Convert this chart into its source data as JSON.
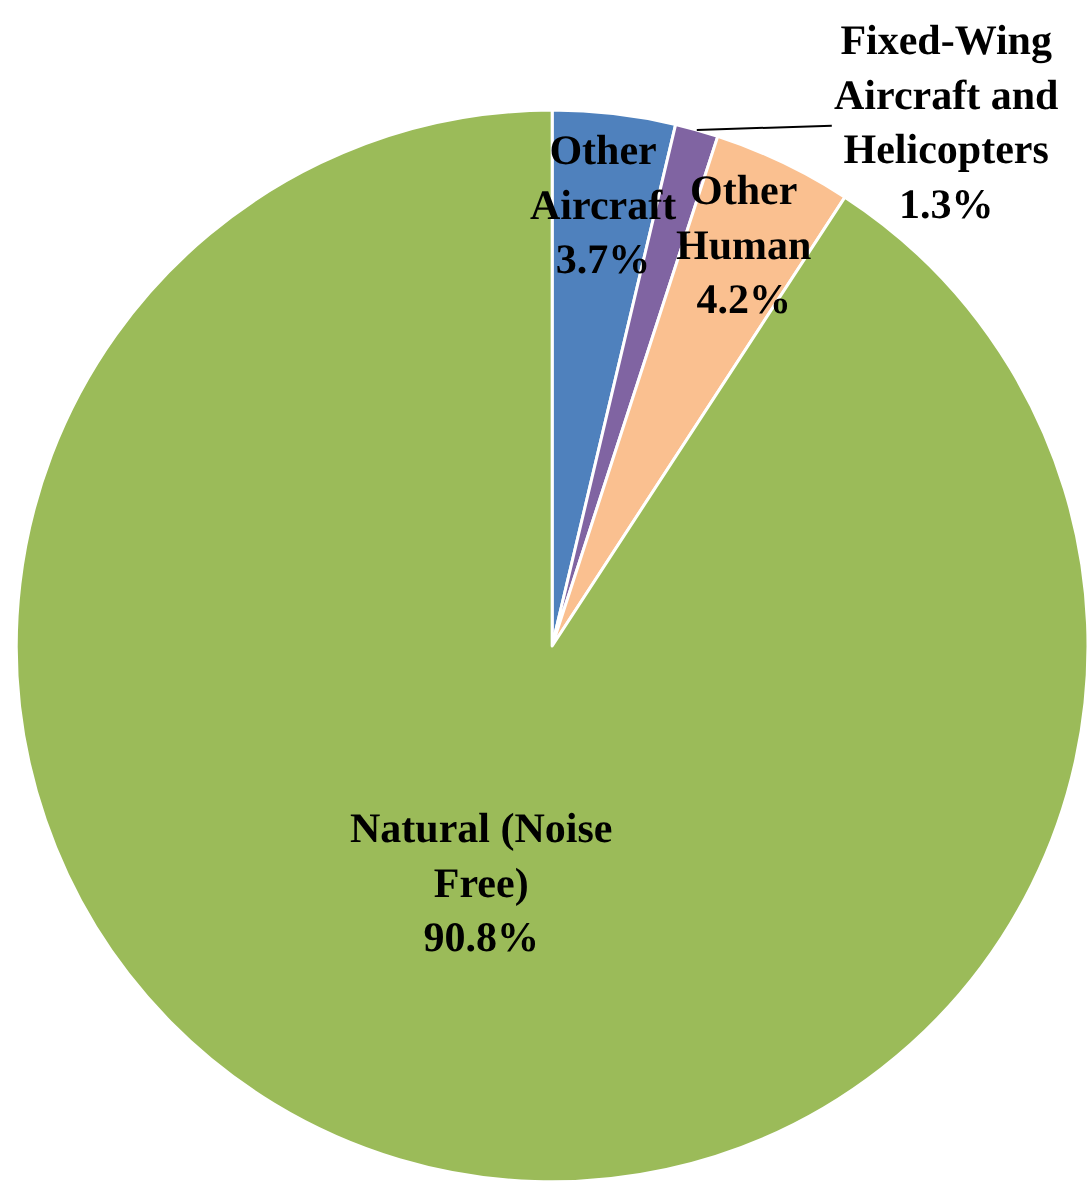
{
  "chart_data": {
    "type": "pie",
    "categories": [
      "Other Aircraft",
      "Fixed-Wing Aircraft and Helicopters",
      "Other Human",
      "Natural (Noise Free)"
    ],
    "values": [
      3.7,
      1.3,
      4.2,
      90.8
    ],
    "colors": [
      "#4f81bd",
      "#8064a2",
      "#fac090",
      "#9bbb59"
    ],
    "value_labels": [
      "3.7%",
      "1.3%",
      "4.2%",
      "90.8%"
    ],
    "legend": false
  }
}
